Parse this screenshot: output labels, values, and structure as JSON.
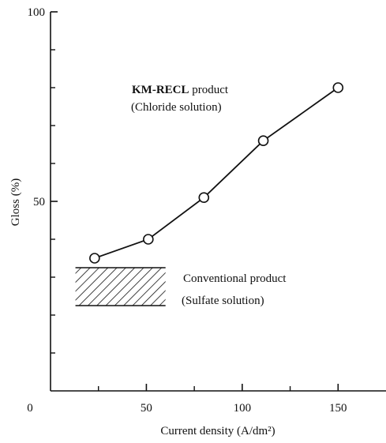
{
  "chart_data": {
    "type": "line",
    "title": "",
    "xlabel": "Current density (A/dm²)",
    "ylabel": "Gloss (%)",
    "xlim": [
      0,
      175
    ],
    "ylim": [
      0,
      100
    ],
    "x_tick_values": [
      0,
      50,
      100,
      150
    ],
    "x_tick_labels": [
      "0",
      "50",
      "100",
      "150"
    ],
    "y_tick_values": [
      50,
      100
    ],
    "y_tick_labels": [
      "50",
      "100"
    ],
    "y_minor_ticks": [
      10,
      20,
      30,
      40,
      60,
      70,
      80,
      90
    ],
    "x_minor_ticks": [
      25,
      75,
      125
    ],
    "grid": false,
    "series": [
      {
        "name": "KM-RECL product (Chloride solution)",
        "marker": "open-circle",
        "x": [
          23,
          51,
          80,
          111,
          150
        ],
        "y": [
          35,
          40,
          51,
          66,
          80
        ]
      }
    ],
    "regions": [
      {
        "name": "Conventional product (Sulfate solution)",
        "pattern": "hatched",
        "x_range": [
          13,
          60
        ],
        "y_range": [
          22.5,
          32.5
        ]
      }
    ],
    "annotations": {
      "km_label_bold": "KM-RECL",
      "km_label_rest": " product",
      "km_label_line2": "(Chloride solution)",
      "conv_label_line1": "Conventional product",
      "conv_label_line2": "(Sulfate solution)"
    }
  }
}
